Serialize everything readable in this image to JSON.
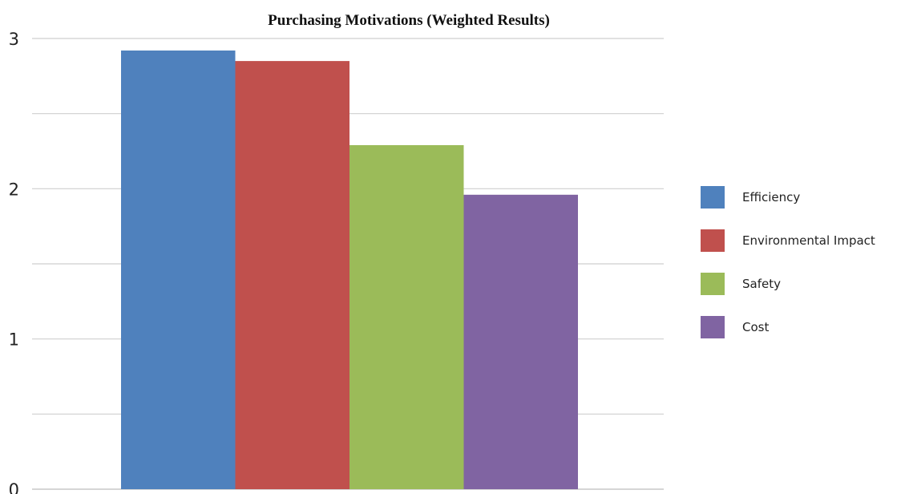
{
  "chart_data": {
    "type": "bar",
    "title": "Purchasing Motivations (Weighted Results)",
    "xlabel": "",
    "ylabel": "",
    "ylim": [
      0,
      3
    ],
    "y_ticks": [
      "0",
      "1",
      "2",
      "3"
    ],
    "grid": true,
    "legend_position": "right",
    "series": [
      {
        "name": "Efficiency",
        "value": 2.92,
        "color": "#4F81BD"
      },
      {
        "name": "Environmental Impact",
        "value": 2.85,
        "color": "#C0504D"
      },
      {
        "name": "Safety",
        "value": 2.29,
        "color": "#9BBB59"
      },
      {
        "name": "Cost",
        "value": 1.96,
        "color": "#8064A2"
      }
    ]
  }
}
